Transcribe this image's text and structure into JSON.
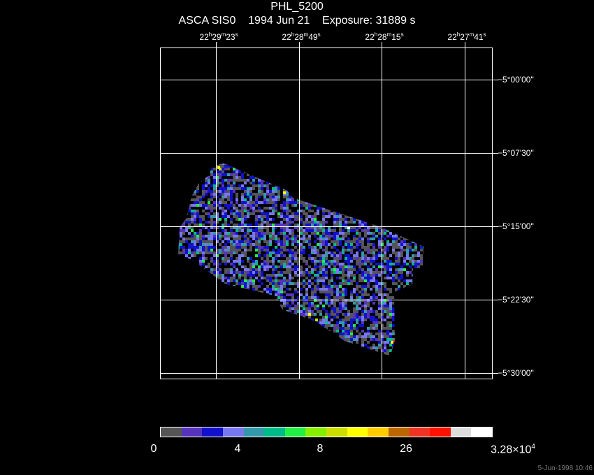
{
  "header": {
    "object": "PHL_5200",
    "instrument": "ASCA SIS0",
    "date": "1994 Jun 21",
    "exposure": "Exposure: 31889 s"
  },
  "ra_axis": [
    {
      "h": "22",
      "m": "29",
      "s": "23"
    },
    {
      "h": "22",
      "m": "28",
      "s": "49"
    },
    {
      "h": "22",
      "m": "28",
      "s": "15"
    },
    {
      "h": "22",
      "m": "27",
      "s": "41"
    }
  ],
  "dec_axis": [
    "−5°00'00\"",
    "−5°07'30\"",
    "−5°15'00\"",
    "−5°22'30\"",
    "−5°30'00\""
  ],
  "colorbar": {
    "colors": [
      "#555555",
      "#5533bb",
      "#1111cc",
      "#7777ee",
      "#3399aa",
      "#00bb88",
      "#22ee44",
      "#88ee00",
      "#ccdd00",
      "#ffff00",
      "#ffcc00",
      "#bb6600",
      "#ee3322",
      "#ff1100",
      "#dddddd",
      "#ffffff"
    ],
    "labels": [
      {
        "text": "0"
      },
      {
        "text": "4"
      },
      {
        "text": "8"
      },
      {
        "text": "26"
      },
      {
        "text": "3.28×10",
        "exp": "4"
      }
    ]
  },
  "timestamp": "5-Jun-1998 10:46"
}
